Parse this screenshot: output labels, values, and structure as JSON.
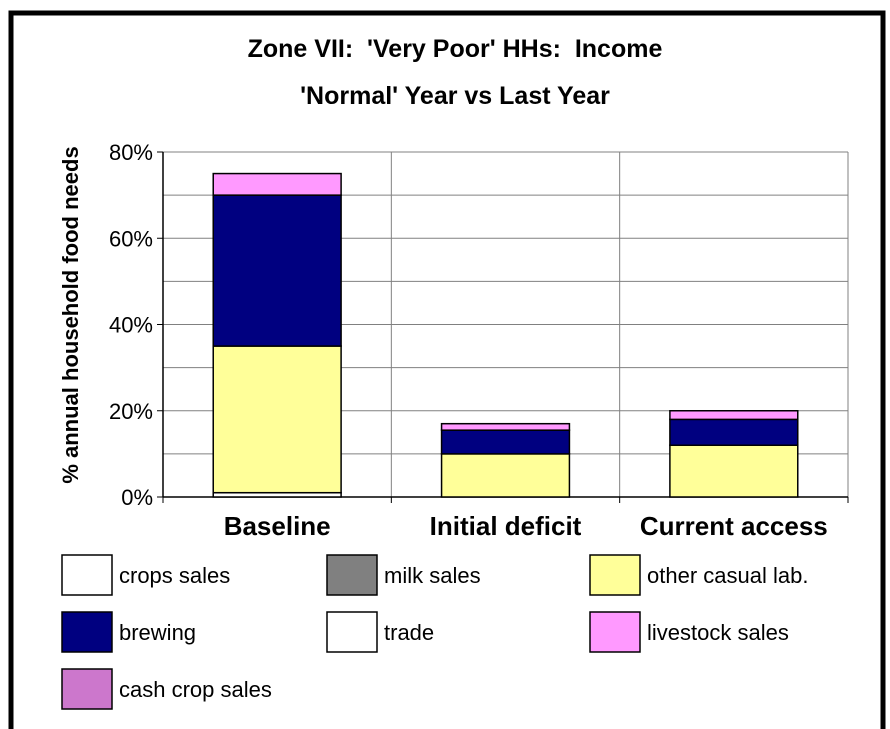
{
  "chart_data": {
    "type": "stacked_bar",
    "title": [
      "Zone VII:  'Very Poor' HHs:  Income",
      "'Normal' Year vs Last Year"
    ],
    "y_label": "% annual household food needs",
    "categories": [
      "Baseline",
      "Initial deficit",
      "Current access"
    ],
    "series": [
      {
        "name": "crops sales",
        "color": "#ffffff",
        "values": [
          1,
          0,
          0
        ]
      },
      {
        "name": "milk sales",
        "color": "#808080",
        "values": [
          0,
          0,
          0
        ]
      },
      {
        "name": "other casual lab.",
        "color": "#ffff99",
        "values": [
          34,
          10,
          12
        ]
      },
      {
        "name": "brewing",
        "color": "#000080",
        "values": [
          35,
          5.5,
          6
        ]
      },
      {
        "name": "trade",
        "color": "#ffffff",
        "values": [
          0,
          0,
          0
        ]
      },
      {
        "name": "livestock sales",
        "color": "#ff99ff",
        "values": [
          5,
          1.5,
          2
        ]
      },
      {
        "name": "cash crop sales",
        "color": "#cc77cc",
        "values": [
          0,
          0,
          0
        ]
      }
    ],
    "ylim": [
      0,
      80
    ],
    "yticks": [
      {
        "value": 0,
        "label": "0%"
      },
      {
        "value": 20,
        "label": "20%"
      },
      {
        "value": 40,
        "label": "40%"
      },
      {
        "value": 60,
        "label": "60%"
      },
      {
        "value": 80,
        "label": "80%"
      }
    ],
    "yminorticks": [
      10,
      30,
      50,
      70
    ],
    "grid": true,
    "legend": "bottom"
  }
}
